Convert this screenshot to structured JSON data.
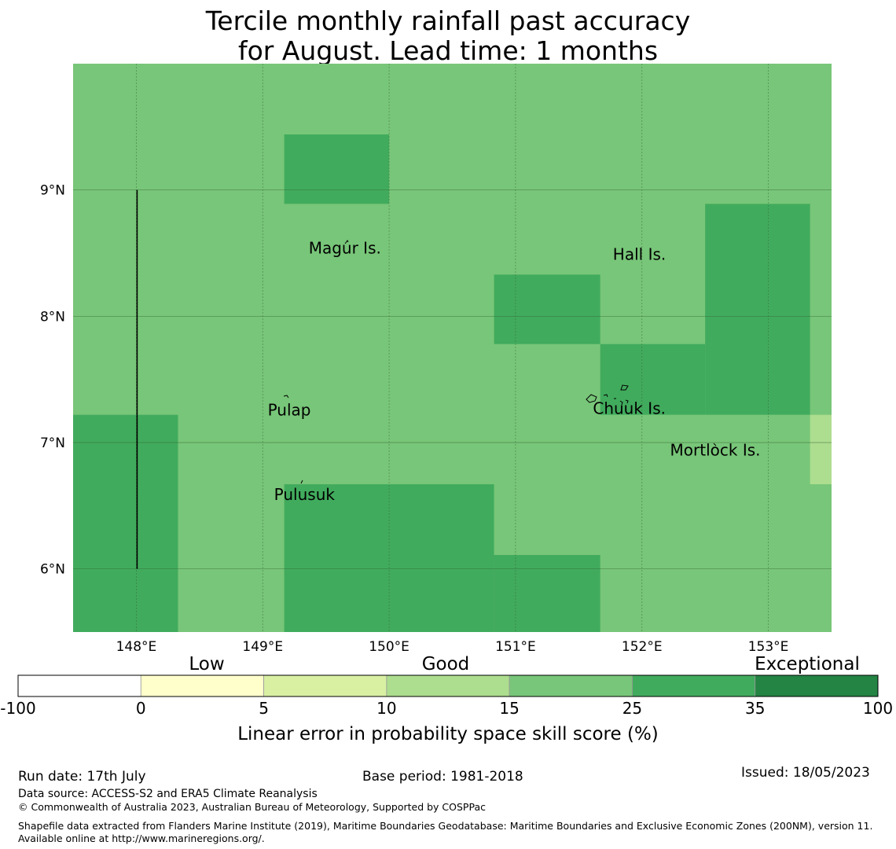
{
  "title": {
    "line1": "Tercile monthly rainfall past accuracy",
    "line2": "for August. Lead time: 1 months"
  },
  "map": {
    "lon_range": [
      147.5,
      153.5
    ],
    "lat_range": [
      5.5,
      10.0
    ],
    "lon_ticks": [
      {
        "value": 148,
        "label": "148°E"
      },
      {
        "value": 149,
        "label": "149°E"
      },
      {
        "value": 150,
        "label": "150°E"
      },
      {
        "value": 151,
        "label": "151°E"
      },
      {
        "value": 152,
        "label": "152°E"
      },
      {
        "value": 153,
        "label": "153°E"
      }
    ],
    "lat_ticks": [
      {
        "value": 9,
        "label": "9°N"
      },
      {
        "value": 8,
        "label": "8°N"
      },
      {
        "value": 7,
        "label": "7°N"
      },
      {
        "value": 6,
        "label": "6°N"
      }
    ],
    "background_class": "15–25",
    "cells": [
      {
        "lon0": 149.17,
        "lon1": 150.0,
        "lat0": 8.89,
        "lat1": 9.44,
        "class": "25–35"
      },
      {
        "lon0": 150.83,
        "lon1": 151.67,
        "lat0": 7.78,
        "lat1": 8.33,
        "class": "25–35"
      },
      {
        "lon0": 152.5,
        "lon1": 153.33,
        "lat0": 7.22,
        "lat1": 8.89,
        "class": "25–35"
      },
      {
        "lon0": 151.67,
        "lon1": 152.5,
        "lat0": 7.22,
        "lat1": 7.78,
        "class": "25–35"
      },
      {
        "lon0": 147.5,
        "lon1": 148.33,
        "lat0": 5.5,
        "lat1": 7.22,
        "class": "25–35"
      },
      {
        "lon0": 149.17,
        "lon1": 150.83,
        "lat0": 5.5,
        "lat1": 6.67,
        "class": "25–35"
      },
      {
        "lon0": 150.83,
        "lon1": 151.67,
        "lat0": 5.5,
        "lat1": 6.11,
        "class": "25–35"
      },
      {
        "lon0": 153.33,
        "lon1": 153.5,
        "lat0": 6.67,
        "lat1": 7.22,
        "class": "10–15"
      }
    ],
    "boundary_line": {
      "lon": 148.0,
      "lat0": 6.0,
      "lat1": 9.0
    },
    "places": [
      {
        "name": "Magur Is.",
        "lon": 149.65,
        "lat": 8.53
      },
      {
        "name": "Hall Is.",
        "lon": 151.98,
        "lat": 8.48
      },
      {
        "name": "Pulap",
        "lon": 149.21,
        "lat": 7.25
      },
      {
        "name": "Chuuk Is.",
        "lon": 151.9,
        "lat": 7.26
      },
      {
        "name": "Mortlock Is.",
        "lon": 152.58,
        "lat": 6.93
      },
      {
        "name": "Pulusuk",
        "lon": 149.33,
        "lat": 6.58
      }
    ]
  },
  "colorbar": {
    "categories": [
      {
        "label": "Low"
      },
      {
        "label": "Good"
      },
      {
        "label": "Exceptional"
      }
    ],
    "ticks": [
      "-100",
      "0",
      "5",
      "10",
      "15",
      "25",
      "35",
      "100"
    ],
    "bins": [
      {
        "range": "-100–0",
        "color": "#ffffff"
      },
      {
        "range": "0–5",
        "color": "#ffffcc"
      },
      {
        "range": "5–10",
        "color": "#d9f0a3"
      },
      {
        "range": "10–15",
        "color": "#addd8e"
      },
      {
        "range": "15–25",
        "color": "#78c679"
      },
      {
        "range": "25–35",
        "color": "#41ab5d"
      },
      {
        "range": "35–100",
        "color": "#238443"
      }
    ],
    "label": "Linear error in probability space skill score (%)"
  },
  "footer": {
    "run_date": "Run date: 17th July",
    "base_period": "Base period: 1981-2018",
    "issued": "Issued: 18/05/2023",
    "data_source": "Data source: ACCESS-S2 and ERA5 Climate Reanalysis",
    "copyright": "© Commonwealth of Australia 2023, Australian Bureau of Meteorology, Supported by COSPPac",
    "shapefile": "Shapefile data extracted from Flanders Marine Institute (2019), Maritime Boundaries Geodatabase: Maritime Boundaries and Exclusive Economic Zones (200NM), version 11. Available online at http://www.marineregions.org/."
  }
}
